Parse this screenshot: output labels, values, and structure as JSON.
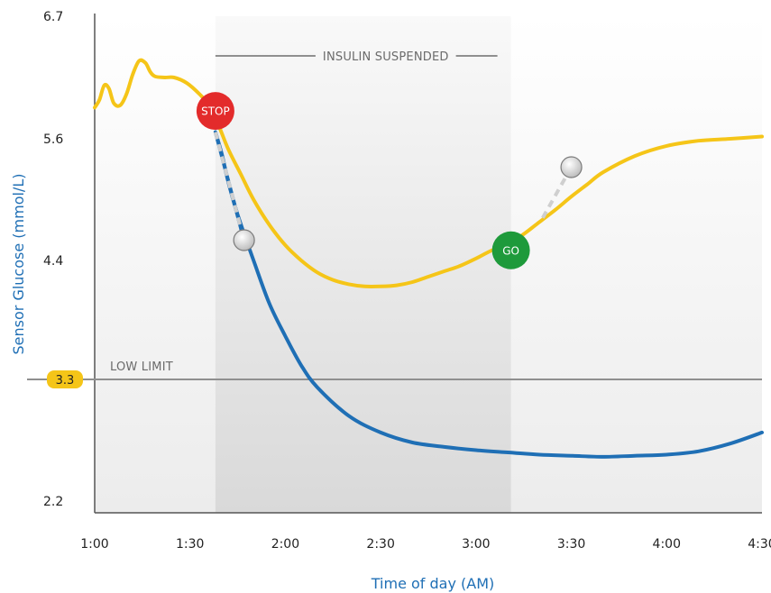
{
  "chart_data": {
    "type": "line",
    "xlabel": "Time of day (AM)",
    "ylabel": "Sensor Glucose (mmol/L)",
    "x_ticks": [
      "1:00",
      "1:30",
      "2:00",
      "2:30",
      "3:00",
      "3:30",
      "4:00",
      "4:30"
    ],
    "x_tick_values": [
      0,
      30,
      60,
      90,
      120,
      150,
      180,
      210
    ],
    "y_ticks": [
      "6.7",
      "5.6",
      "4.4",
      "2.2"
    ],
    "y_tick_values": [
      6.7,
      5.6,
      4.4,
      2.2
    ],
    "xlim": [
      0,
      210
    ],
    "ylim": [
      2.2,
      6.7
    ],
    "low_limit": {
      "label": "LOW LIMIT",
      "value": 3.3,
      "badge": "3.3"
    },
    "suspended_region": {
      "label": "INSULIN SUSPENDED",
      "x_start": 38,
      "x_end": 131
    },
    "colors": {
      "axis_title": "#1f6fb5",
      "sensor": "#f5c518",
      "predicted": "#1f6fb5",
      "stop": "#e32b2b",
      "go": "#1e9a3b",
      "badge": "#f5c518"
    },
    "series": [
      {
        "values": [
          [
            0,
            5.88
          ],
          [
            1.5,
            5.95
          ],
          [
            3,
            6.08
          ],
          [
            4.5,
            6.05
          ],
          [
            6,
            5.92
          ],
          [
            8,
            5.9
          ],
          [
            10,
            6.0
          ],
          [
            12,
            6.18
          ],
          [
            14,
            6.3
          ],
          [
            16,
            6.28
          ],
          [
            17.5,
            6.2
          ],
          [
            19,
            6.16
          ],
          [
            22,
            6.15
          ],
          [
            25,
            6.15
          ],
          [
            29,
            6.1
          ],
          [
            33,
            6.0
          ],
          [
            36,
            5.9
          ],
          [
            39,
            5.72
          ],
          [
            42,
            5.5
          ],
          [
            46,
            5.25
          ],
          [
            50,
            5.0
          ],
          [
            55,
            4.75
          ],
          [
            60,
            4.55
          ],
          [
            65,
            4.4
          ],
          [
            70,
            4.29
          ],
          [
            75,
            4.22
          ],
          [
            80,
            4.18
          ],
          [
            85,
            4.16
          ],
          [
            90,
            4.16
          ],
          [
            95,
            4.17
          ],
          [
            100,
            4.2
          ],
          [
            105,
            4.25
          ],
          [
            110,
            4.3
          ],
          [
            115,
            4.35
          ],
          [
            120,
            4.42
          ],
          [
            125,
            4.5
          ],
          [
            130,
            4.56
          ],
          [
            135,
            4.66
          ],
          [
            140,
            4.78
          ],
          [
            145,
            4.9
          ],
          [
            150,
            5.03
          ],
          [
            155,
            5.15
          ],
          [
            160,
            5.27
          ],
          [
            170,
            5.43
          ],
          [
            180,
            5.53
          ],
          [
            190,
            5.58
          ],
          [
            200,
            5.6
          ],
          [
            210,
            5.62
          ]
        ]
      },
      {
        "values": [
          [
            38,
            5.66
          ],
          [
            40,
            5.45
          ],
          [
            42,
            5.18
          ],
          [
            45,
            4.85
          ],
          [
            50,
            4.4
          ],
          [
            55,
            4.0
          ],
          [
            60,
            3.7
          ],
          [
            65,
            3.43
          ],
          [
            70,
            3.23
          ],
          [
            80,
            2.97
          ],
          [
            90,
            2.82
          ],
          [
            100,
            2.73
          ],
          [
            110,
            2.69
          ],
          [
            120,
            2.66
          ],
          [
            130,
            2.64
          ],
          [
            140,
            2.62
          ],
          [
            150,
            2.61
          ],
          [
            160,
            2.6
          ],
          [
            170,
            2.61
          ],
          [
            180,
            2.62
          ],
          [
            190,
            2.65
          ],
          [
            200,
            2.72
          ],
          [
            210,
            2.82
          ]
        ]
      }
    ],
    "markers": [
      {
        "label": "STOP",
        "x": 38,
        "y": 5.85
      },
      {
        "label": "GO",
        "x": 131,
        "y": 4.5
      }
    ],
    "predicted_points": [
      {
        "x": 47,
        "y": 4.6,
        "from_x": 38,
        "from_y": 5.66
      },
      {
        "x": 150,
        "y": 5.32,
        "from_x": 141,
        "from_y": 4.82
      }
    ]
  }
}
